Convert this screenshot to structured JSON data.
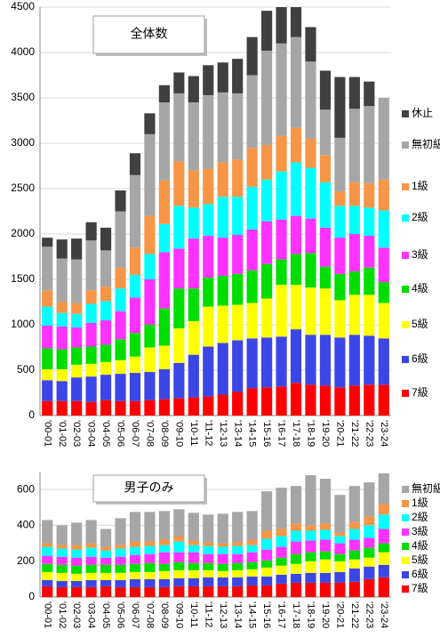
{
  "chart_data": [
    {
      "type": "stacked_bar",
      "title": "全体数",
      "categories": [
        "'00-01",
        "'01-02",
        "'02-03",
        "'03-04",
        "'04-05",
        "'05-06",
        "'06-07",
        "'07-08",
        "'08-09",
        "'09-10",
        "'10-11",
        "'11-12",
        "'12-13",
        "'13-14",
        "'14-15",
        "'15-16",
        "'16-17",
        "'17-18",
        "'18-19",
        "'19-20",
        "'20-21",
        "'21-22",
        "'22-23",
        "'23-24"
      ],
      "ylim": [
        0,
        4500
      ],
      "yticks": [
        0,
        500,
        1000,
        1500,
        2000,
        2500,
        3000,
        3500,
        4000,
        4500
      ],
      "grid": true,
      "series": [
        {
          "name": "7級",
          "color": "#ff0000",
          "values": [
            160,
            160,
            160,
            150,
            170,
            160,
            160,
            170,
            180,
            190,
            200,
            210,
            230,
            260,
            300,
            310,
            320,
            360,
            340,
            330,
            310,
            330,
            340,
            340
          ]
        },
        {
          "name": "6級",
          "color": "#3c46e6",
          "values": [
            230,
            220,
            260,
            280,
            280,
            300,
            310,
            310,
            330,
            390,
            470,
            550,
            570,
            570,
            550,
            550,
            550,
            590,
            550,
            560,
            550,
            560,
            540,
            510
          ]
        },
        {
          "name": "5級",
          "color": "#ffff00",
          "values": [
            120,
            130,
            140,
            140,
            140,
            150,
            180,
            270,
            260,
            380,
            370,
            440,
            410,
            390,
            390,
            430,
            570,
            490,
            520,
            510,
            410,
            440,
            450,
            390
          ]
        },
        {
          "name": "4級",
          "color": "#00dd00",
          "values": [
            230,
            220,
            190,
            190,
            190,
            230,
            260,
            250,
            410,
            440,
            360,
            320,
            330,
            340,
            360,
            380,
            280,
            340,
            380,
            240,
            290,
            260,
            300,
            230
          ]
        },
        {
          "name": "3級",
          "color": "#ff33ff",
          "values": [
            250,
            250,
            220,
            260,
            270,
            310,
            390,
            500,
            620,
            440,
            550,
            460,
            420,
            430,
            450,
            470,
            440,
            420,
            380,
            430,
            400,
            410,
            350,
            380
          ]
        },
        {
          "name": "2級",
          "color": "#00ffff",
          "values": [
            210,
            150,
            150,
            210,
            210,
            250,
            250,
            280,
            310,
            470,
            340,
            350,
            450,
            420,
            470,
            460,
            530,
            590,
            560,
            500,
            350,
            310,
            310,
            410
          ]
        },
        {
          "name": "1級",
          "color": "#f79646",
          "values": [
            180,
            120,
            120,
            150,
            160,
            230,
            300,
            420,
            480,
            490,
            410,
            390,
            380,
            410,
            430,
            380,
            390,
            380,
            320,
            300,
            160,
            260,
            270,
            340
          ]
        },
        {
          "name": "無初級",
          "color": "#a6a6a6",
          "values": [
            480,
            480,
            480,
            550,
            400,
            620,
            800,
            900,
            860,
            750,
            750,
            810,
            770,
            730,
            800,
            1040,
            1020,
            1000,
            850,
            500,
            590,
            810,
            850,
            900
          ]
        },
        {
          "name": "休止",
          "color": "#404040",
          "values": [
            100,
            210,
            230,
            200,
            250,
            230,
            240,
            230,
            190,
            230,
            290,
            330,
            330,
            380,
            420,
            440,
            400,
            330,
            380,
            430,
            670,
            350,
            270,
            0
          ]
        }
      ]
    },
    {
      "type": "stacked_bar",
      "title": "男子のみ",
      "categories": [
        "'00-01",
        "'01-02",
        "'02-03",
        "'03-04",
        "'04-05",
        "'05-06",
        "'06-07",
        "'07-08",
        "'08-09",
        "'09-10",
        "'10-11",
        "'11-12",
        "'12-13",
        "'13-14",
        "'14-15",
        "'15-16",
        "'16-17",
        "'17-18",
        "'18-19",
        "'19-20",
        "'20-21",
        "'21-22",
        "'22-23",
        "'23-24"
      ],
      "ylim": [
        0,
        700
      ],
      "yticks": [
        0,
        200,
        400,
        600
      ],
      "grid": true,
      "series": [
        {
          "name": "7級",
          "color": "#ff0000",
          "values": [
            60,
            55,
            55,
            55,
            60,
            55,
            55,
            55,
            55,
            60,
            60,
            60,
            60,
            60,
            65,
            65,
            75,
            80,
            80,
            80,
            80,
            85,
            100,
            110
          ]
        },
        {
          "name": "6級",
          "color": "#3c46e6",
          "values": [
            35,
            35,
            35,
            40,
            35,
            40,
            45,
            45,
            45,
            45,
            45,
            50,
            50,
            50,
            50,
            50,
            50,
            50,
            55,
            55,
            60,
            75,
            70,
            70
          ]
        },
        {
          "name": "5級",
          "color": "#ffff00",
          "values": [
            45,
            45,
            40,
            40,
            40,
            40,
            40,
            40,
            45,
            45,
            45,
            40,
            35,
            40,
            40,
            50,
            50,
            55,
            65,
            75,
            60,
            50,
            50,
            70
          ]
        },
        {
          "name": "4級",
          "color": "#00dd00",
          "values": [
            45,
            45,
            45,
            45,
            45,
            45,
            45,
            50,
            40,
            45,
            40,
            40,
            40,
            40,
            40,
            40,
            45,
            55,
            50,
            45,
            40,
            50,
            55,
            50
          ]
        },
        {
          "name": "3級",
          "color": "#ff33ff",
          "values": [
            45,
            45,
            45,
            45,
            40,
            45,
            50,
            50,
            65,
            55,
            60,
            50,
            55,
            50,
            55,
            60,
            60,
            70,
            65,
            65,
            60,
            60,
            55,
            80
          ]
        },
        {
          "name": "2級",
          "color": "#00ffff",
          "values": [
            50,
            45,
            45,
            50,
            40,
            45,
            45,
            45,
            40,
            60,
            40,
            45,
            40,
            45,
            40,
            60,
            60,
            60,
            55,
            55,
            40,
            60,
            70,
            80
          ]
        },
        {
          "name": "1級",
          "color": "#f79646",
          "values": [
            20,
            20,
            25,
            25,
            20,
            20,
            30,
            25,
            30,
            30,
            25,
            20,
            20,
            20,
            30,
            45,
            40,
            40,
            30,
            35,
            20,
            40,
            50,
            60
          ]
        },
        {
          "name": "無初級",
          "color": "#a6a6a6",
          "values": [
            130,
            110,
            125,
            130,
            100,
            150,
            165,
            165,
            160,
            150,
            155,
            155,
            165,
            170,
            160,
            220,
            230,
            210,
            280,
            250,
            210,
            200,
            190,
            170
          ]
        }
      ]
    }
  ]
}
